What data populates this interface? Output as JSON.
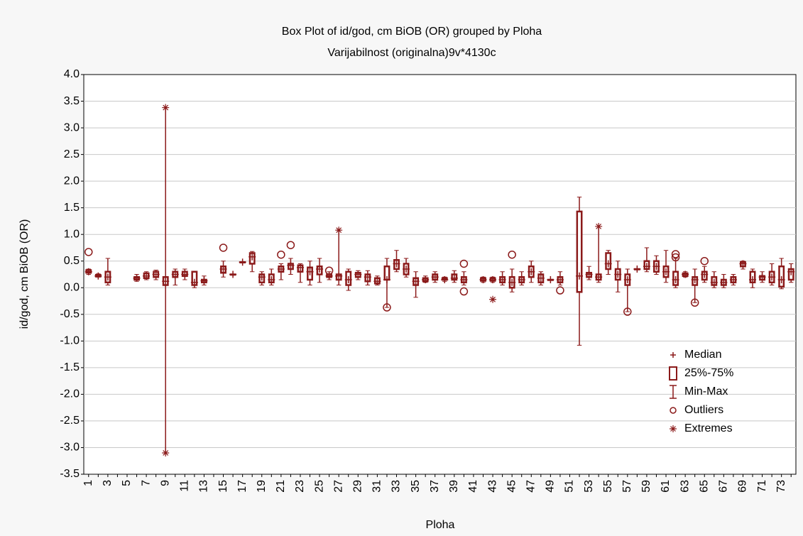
{
  "chart_data": {
    "type": "box",
    "title": "Box Plot of id/god, cm BiOB (OR) grouped by  Ploha",
    "subtitle": "Varijabilnost (originalna)9v*4130c",
    "y_label": "id/god, cm BiOB (OR)",
    "x_label": "Ploha",
    "color": "#8b1a1a",
    "grid": true,
    "legend_position": "lower right",
    "legend": [
      "Median",
      "25%-75%",
      "Min-Max",
      "Outliers",
      "Extremes"
    ],
    "ylim": [
      -3.5,
      4.0
    ],
    "yticks": [
      {
        "value": 4,
        "label": "4.0"
      },
      {
        "value": 3.5,
        "label": "3.5"
      },
      {
        "value": 3,
        "label": "3.0"
      },
      {
        "value": 2.5,
        "label": "2.5"
      },
      {
        "value": 2,
        "label": "2.0"
      },
      {
        "value": 1.5,
        "label": "1.5"
      },
      {
        "value": 1,
        "label": "1.0"
      },
      {
        "value": 0.5,
        "label": "0.5"
      },
      {
        "value": 0,
        "label": "0.0"
      },
      {
        "value": -0.5,
        "label": "-0.5"
      },
      {
        "value": -1,
        "label": "-1.0"
      },
      {
        "value": -1.5,
        "label": "-1.5"
      },
      {
        "value": -2,
        "label": "-2.0"
      },
      {
        "value": -2.5,
        "label": "-2.5"
      },
      {
        "value": -3,
        "label": "-3.0"
      },
      {
        "value": -3.5,
        "label": "-3.5"
      }
    ],
    "categories": [
      "1",
      null,
      "3",
      null,
      "5",
      null,
      "7",
      null,
      "9",
      null,
      "11",
      null,
      "13",
      null,
      "15",
      null,
      "17",
      null,
      "19",
      null,
      "21",
      null,
      "23",
      null,
      "25",
      null,
      "27",
      null,
      "29",
      null,
      "31",
      null,
      "33",
      null,
      "35",
      null,
      "37",
      null,
      "39",
      null,
      "41",
      null,
      "43",
      null,
      "45",
      null,
      "47",
      null,
      "49",
      null,
      "51",
      null,
      "53",
      null,
      "55",
      null,
      "57",
      null,
      "59",
      null,
      "61",
      null,
      "63",
      null,
      "65",
      null,
      "67",
      null,
      "69",
      null,
      "71",
      null,
      "73",
      null
    ],
    "boxes": [
      {
        "min": 0.25,
        "q1": 0.28,
        "median": 0.3,
        "q3": 0.33,
        "max": 0.35,
        "outliers": [
          0.67
        ]
      },
      {
        "min": 0.2,
        "q1": 0.21,
        "median": 0.22,
        "q3": 0.24,
        "max": 0.26
      },
      {
        "min": 0.05,
        "q1": 0.1,
        "median": 0.2,
        "q3": 0.3,
        "max": 0.55
      },
      null,
      null,
      {
        "min": 0.12,
        "q1": 0.15,
        "median": 0.18,
        "q3": 0.2,
        "max": 0.25
      },
      {
        "min": 0.15,
        "q1": 0.18,
        "median": 0.22,
        "q3": 0.27,
        "max": 0.3
      },
      {
        "min": 0.15,
        "q1": 0.2,
        "median": 0.25,
        "q3": 0.3,
        "max": 0.33
      },
      {
        "min": -3.1,
        "q1": 0.05,
        "median": 0.12,
        "q3": 0.2,
        "max": 3.38,
        "extremes": [
          3.38,
          -3.1
        ]
      },
      {
        "min": 0.05,
        "q1": 0.2,
        "median": 0.25,
        "q3": 0.3,
        "max": 0.35
      },
      {
        "min": 0.15,
        "q1": 0.22,
        "median": 0.25,
        "q3": 0.3,
        "max": 0.35
      },
      {
        "min": 0.0,
        "q1": 0.05,
        "median": 0.1,
        "q3": 0.3,
        "max": 0.3
      },
      {
        "min": 0.05,
        "q1": 0.1,
        "median": 0.13,
        "q3": 0.15,
        "max": 0.22
      },
      null,
      {
        "min": 0.2,
        "q1": 0.28,
        "median": 0.35,
        "q3": 0.4,
        "max": 0.5,
        "outliers": [
          0.75
        ]
      },
      {
        "min": 0.25,
        "q1": 0.25,
        "median": 0.25,
        "q3": 0.25,
        "max": 0.25
      },
      {
        "min": 0.48,
        "q1": 0.48,
        "median": 0.48,
        "q3": 0.48,
        "max": 0.48
      },
      {
        "min": 0.3,
        "q1": 0.45,
        "median": 0.58,
        "q3": 0.65,
        "max": 0.68
      },
      {
        "min": 0.05,
        "q1": 0.1,
        "median": 0.2,
        "q3": 0.25,
        "max": 0.3
      },
      {
        "min": 0.05,
        "q1": 0.1,
        "median": 0.15,
        "q3": 0.25,
        "max": 0.35
      },
      {
        "min": 0.15,
        "q1": 0.3,
        "median": 0.35,
        "q3": 0.4,
        "max": 0.45,
        "outliers": [
          0.62
        ]
      },
      {
        "min": 0.25,
        "q1": 0.35,
        "median": 0.42,
        "q3": 0.45,
        "max": 0.55,
        "outliers": [
          0.8
        ]
      },
      {
        "min": 0.1,
        "q1": 0.3,
        "median": 0.38,
        "q3": 0.42,
        "max": 0.45
      },
      {
        "min": 0.05,
        "q1": 0.15,
        "median": 0.3,
        "q3": 0.38,
        "max": 0.5
      },
      {
        "min": 0.1,
        "q1": 0.25,
        "median": 0.35,
        "q3": 0.4,
        "max": 0.55
      },
      {
        "min": 0.15,
        "q1": 0.2,
        "median": 0.22,
        "q3": 0.25,
        "max": 0.3,
        "outliers": [
          0.32
        ]
      },
      {
        "min": 0.05,
        "q1": 0.15,
        "median": 0.22,
        "q3": 0.25,
        "max": 1.08,
        "extremes": [
          1.08
        ]
      },
      {
        "min": -0.05,
        "q1": 0.05,
        "median": 0.15,
        "q3": 0.3,
        "max": 0.35
      },
      {
        "min": 0.15,
        "q1": 0.2,
        "median": 0.25,
        "q3": 0.28,
        "max": 0.32
      },
      {
        "min": 0.05,
        "q1": 0.12,
        "median": 0.2,
        "q3": 0.25,
        "max": 0.32
      },
      {
        "min": 0.05,
        "q1": 0.08,
        "median": 0.12,
        "q3": 0.18,
        "max": 0.22
      },
      {
        "min": -0.37,
        "q1": 0.15,
        "median": 0.15,
        "q3": 0.4,
        "max": 0.55,
        "outliers": [
          -0.37
        ]
      },
      {
        "min": 0.3,
        "q1": 0.35,
        "median": 0.45,
        "q3": 0.52,
        "max": 0.7
      },
      {
        "min": 0.2,
        "q1": 0.25,
        "median": 0.35,
        "q3": 0.45,
        "max": 0.55
      },
      {
        "min": -0.18,
        "q1": 0.05,
        "median": 0.12,
        "q3": 0.18,
        "max": 0.3
      },
      {
        "min": 0.1,
        "q1": 0.12,
        "median": 0.15,
        "q3": 0.18,
        "max": 0.22
      },
      {
        "min": 0.1,
        "q1": 0.15,
        "median": 0.2,
        "q3": 0.25,
        "max": 0.3
      },
      {
        "min": 0.12,
        "q1": 0.15,
        "median": 0.15,
        "q3": 0.18,
        "max": 0.2
      },
      {
        "min": 0.1,
        "q1": 0.15,
        "median": 0.18,
        "q3": 0.25,
        "max": 0.32
      },
      {
        "min": 0.05,
        "q1": 0.1,
        "median": 0.15,
        "q3": 0.2,
        "max": 0.3,
        "outliers": [
          0.45,
          -0.07
        ]
      },
      null,
      {
        "min": 0.1,
        "q1": 0.13,
        "median": 0.15,
        "q3": 0.18,
        "max": 0.2
      },
      {
        "min": 0.1,
        "q1": 0.13,
        "median": 0.15,
        "q3": 0.18,
        "max": 0.2,
        "extremes": [
          -0.22
        ]
      },
      {
        "min": 0.05,
        "q1": 0.1,
        "median": 0.15,
        "q3": 0.2,
        "max": 0.3
      },
      {
        "min": -0.08,
        "q1": 0.0,
        "median": 0.1,
        "q3": 0.2,
        "max": 0.35,
        "outliers": [
          0.62
        ]
      },
      {
        "min": 0.05,
        "q1": 0.1,
        "median": 0.15,
        "q3": 0.2,
        "max": 0.3
      },
      {
        "min": 0.1,
        "q1": 0.2,
        "median": 0.3,
        "q3": 0.4,
        "max": 0.5
      },
      {
        "min": 0.05,
        "q1": 0.1,
        "median": 0.18,
        "q3": 0.25,
        "max": 0.3
      },
      {
        "min": 0.15,
        "q1": 0.15,
        "median": 0.15,
        "q3": 0.15,
        "max": 0.15
      },
      {
        "min": 0.05,
        "q1": 0.1,
        "median": 0.15,
        "q3": 0.2,
        "max": 0.3,
        "outliers": [
          -0.05
        ]
      },
      null,
      {
        "min": -1.08,
        "q1": -0.08,
        "median": 0.22,
        "q3": 1.43,
        "max": 1.7
      },
      {
        "min": 0.15,
        "q1": 0.2,
        "median": 0.25,
        "q3": 0.28,
        "max": 0.4
      },
      {
        "min": 0.1,
        "q1": 0.15,
        "median": 0.2,
        "q3": 0.25,
        "max": 1.15,
        "extremes": [
          1.15
        ]
      },
      {
        "min": 0.25,
        "q1": 0.35,
        "median": 0.45,
        "q3": 0.65,
        "max": 0.7
      },
      {
        "min": -0.08,
        "q1": 0.15,
        "median": 0.25,
        "q3": 0.35,
        "max": 0.5
      },
      {
        "min": -0.45,
        "q1": 0.05,
        "median": 0.15,
        "q3": 0.25,
        "max": 0.35,
        "outliers": [
          -0.45
        ]
      },
      {
        "min": 0.35,
        "q1": 0.35,
        "median": 0.35,
        "q3": 0.35,
        "max": 0.35
      },
      {
        "min": 0.3,
        "q1": 0.35,
        "median": 0.4,
        "q3": 0.5,
        "max": 0.75
      },
      {
        "min": 0.25,
        "q1": 0.3,
        "median": 0.4,
        "q3": 0.5,
        "max": 0.6
      },
      {
        "min": 0.1,
        "q1": 0.2,
        "median": 0.3,
        "q3": 0.4,
        "max": 0.7
      },
      {
        "min": 0.0,
        "q1": 0.05,
        "median": 0.15,
        "q3": 0.3,
        "max": 0.55,
        "outliers": [
          0.63,
          0.57
        ]
      },
      {
        "min": 0.2,
        "q1": 0.22,
        "median": 0.25,
        "q3": 0.27,
        "max": 0.3
      },
      {
        "min": -0.28,
        "q1": 0.05,
        "median": 0.15,
        "q3": 0.2,
        "max": 0.35,
        "outliers": [
          -0.28
        ]
      },
      {
        "min": 0.1,
        "q1": 0.15,
        "median": 0.25,
        "q3": 0.3,
        "max": 0.4,
        "outliers": [
          0.5
        ]
      },
      {
        "min": 0.0,
        "q1": 0.05,
        "median": 0.1,
        "q3": 0.2,
        "max": 0.3
      },
      {
        "min": 0.0,
        "q1": 0.05,
        "median": 0.1,
        "q3": 0.15,
        "max": 0.25
      },
      {
        "min": 0.05,
        "q1": 0.1,
        "median": 0.15,
        "q3": 0.2,
        "max": 0.25
      },
      {
        "min": 0.35,
        "q1": 0.4,
        "median": 0.45,
        "q3": 0.48,
        "max": 0.5
      },
      {
        "min": 0.0,
        "q1": 0.1,
        "median": 0.15,
        "q3": 0.3,
        "max": 0.35
      },
      {
        "min": 0.1,
        "q1": 0.15,
        "median": 0.2,
        "q3": 0.22,
        "max": 0.3
      },
      {
        "min": 0.05,
        "q1": 0.1,
        "median": 0.2,
        "q3": 0.3,
        "max": 0.45
      },
      {
        "min": -0.02,
        "q1": 0.02,
        "median": 0.15,
        "q3": 0.4,
        "max": 0.55
      },
      {
        "min": 0.1,
        "q1": 0.15,
        "median": 0.3,
        "q3": 0.35,
        "max": 0.45
      }
    ]
  }
}
